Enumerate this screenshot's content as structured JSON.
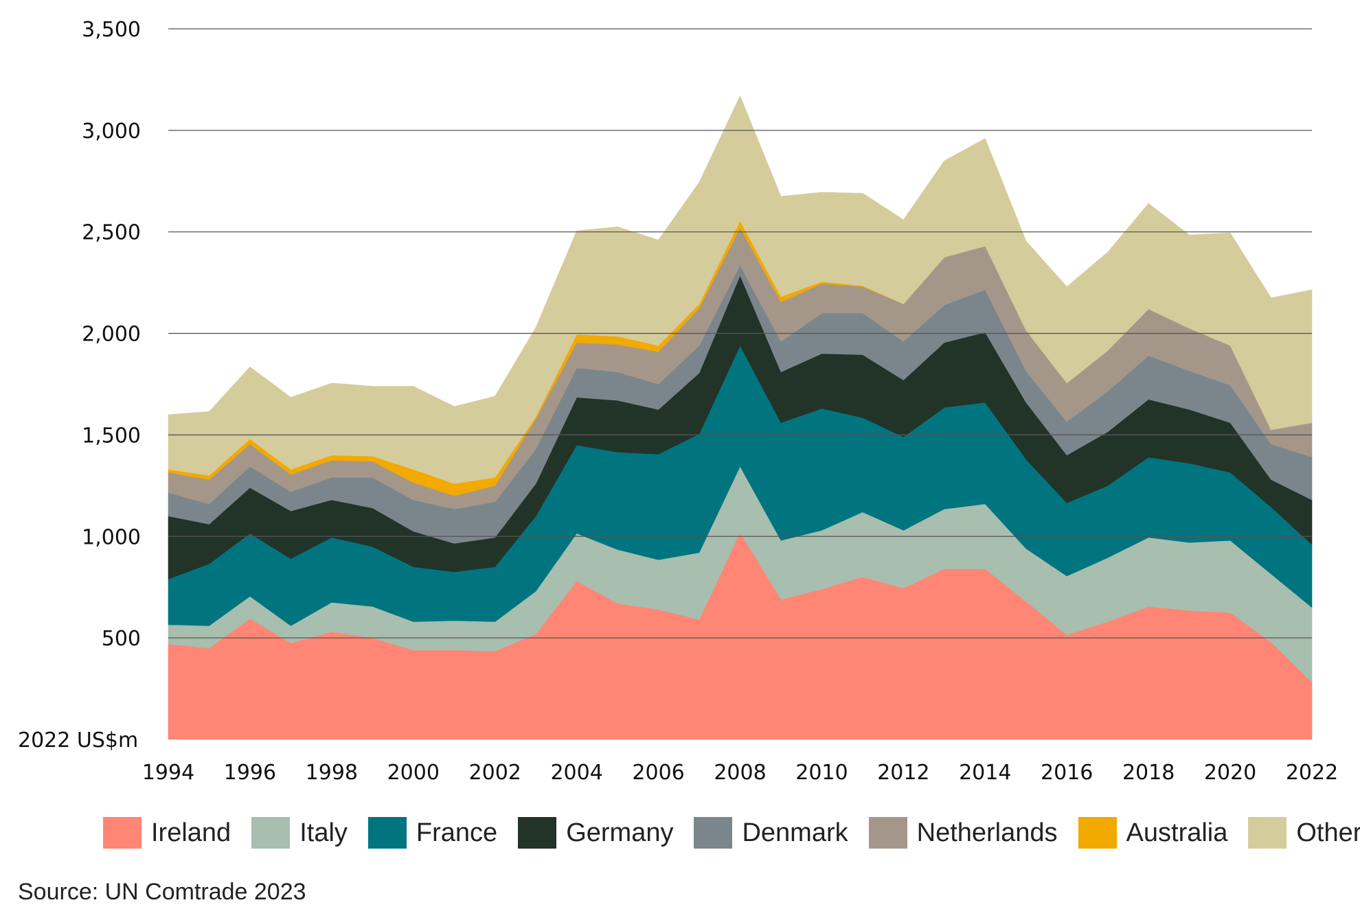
{
  "chart_data": {
    "type": "area",
    "stacked": true,
    "ylabel": "2022 US$m",
    "ylim": [
      0,
      3500
    ],
    "y_ticks": [
      "500",
      "1,000",
      "1,500",
      "2,000",
      "2,500",
      "3,000",
      "3,500"
    ],
    "x_ticks": [
      "1994",
      "1996",
      "1998",
      "2000",
      "2002",
      "2004",
      "2006",
      "2008",
      "2010",
      "2012",
      "2014",
      "2016",
      "2018",
      "2020",
      "2022"
    ],
    "x": [
      1994,
      1995,
      1996,
      1997,
      1998,
      1999,
      2000,
      2001,
      2002,
      2003,
      2004,
      2005,
      2006,
      2007,
      2008,
      2009,
      2010,
      2011,
      2012,
      2013,
      2014,
      2015,
      2016,
      2017,
      2018,
      2019,
      2020,
      2021,
      2022
    ],
    "grid": "horizontal",
    "legend_position": "bottom",
    "series": [
      {
        "name": "Ireland",
        "color": "#FF8674",
        "values": [
          470,
          450,
          595,
          475,
          530,
          500,
          440,
          440,
          435,
          520,
          780,
          670,
          640,
          590,
          1020,
          690,
          740,
          800,
          745,
          840,
          840,
          680,
          515,
          580,
          655,
          635,
          625,
          480,
          280
        ]
      },
      {
        "name": "Italy",
        "color": "#A8BEAF",
        "values": [
          95,
          110,
          110,
          85,
          145,
          155,
          140,
          145,
          145,
          210,
          235,
          265,
          245,
          330,
          325,
          290,
          290,
          320,
          285,
          295,
          320,
          260,
          290,
          315,
          340,
          335,
          355,
          335,
          370
        ]
      },
      {
        "name": "France",
        "color": "#00757F",
        "values": [
          225,
          305,
          310,
          330,
          320,
          295,
          270,
          240,
          270,
          370,
          435,
          480,
          520,
          585,
          595,
          580,
          600,
          465,
          460,
          500,
          500,
          440,
          360,
          355,
          395,
          390,
          335,
          330,
          310
        ]
      },
      {
        "name": "Germany",
        "color": "#223328",
        "values": [
          310,
          195,
          225,
          235,
          185,
          190,
          175,
          140,
          145,
          160,
          235,
          255,
          220,
          300,
          345,
          250,
          270,
          310,
          280,
          320,
          345,
          280,
          235,
          265,
          285,
          265,
          245,
          135,
          220
        ]
      },
      {
        "name": "Denmark",
        "color": "#7B868C",
        "values": [
          115,
          100,
          105,
          95,
          110,
          150,
          155,
          170,
          175,
          170,
          145,
          140,
          125,
          135,
          50,
          150,
          200,
          205,
          190,
          185,
          210,
          155,
          165,
          200,
          215,
          190,
          185,
          175,
          210
        ]
      },
      {
        "name": "Netherlands",
        "color": "#A4978A",
        "values": [
          100,
          120,
          110,
          85,
          85,
          80,
          85,
          65,
          80,
          150,
          125,
          135,
          160,
          185,
          185,
          195,
          145,
          130,
          185,
          235,
          215,
          200,
          190,
          200,
          230,
          210,
          195,
          70,
          170
        ]
      },
      {
        "name": "Australia",
        "color": "#F2A900",
        "values": [
          15,
          20,
          25,
          25,
          25,
          25,
          65,
          60,
          40,
          10,
          40,
          40,
          30,
          20,
          35,
          25,
          10,
          5,
          0,
          0,
          0,
          0,
          0,
          0,
          0,
          0,
          0,
          0,
          0
        ]
      },
      {
        "name": "Others",
        "color": "#D5CC9C",
        "values": [
          270,
          315,
          355,
          355,
          355,
          345,
          410,
          380,
          400,
          440,
          510,
          540,
          520,
          600,
          615,
          495,
          440,
          455,
          415,
          475,
          530,
          440,
          475,
          485,
          520,
          460,
          555,
          650,
          655
        ]
      }
    ]
  },
  "source": "Source: UN Comtrade 2023"
}
